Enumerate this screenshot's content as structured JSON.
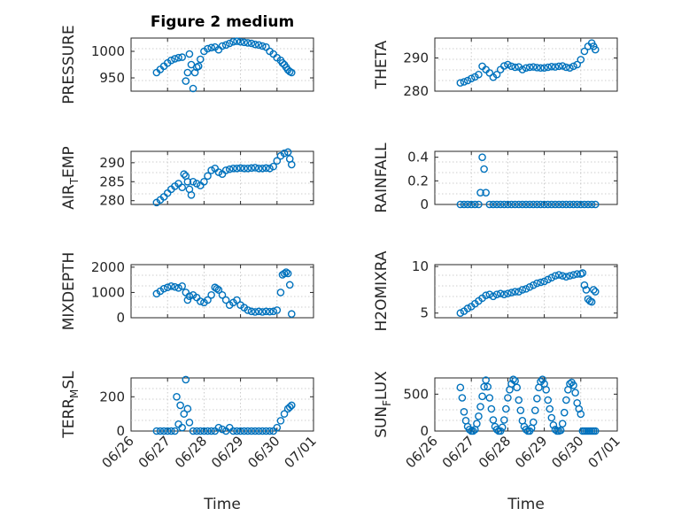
{
  "figure": {
    "title": "Figure 2 medium"
  },
  "x_axis": {
    "range": [
      "06/26",
      "07/01"
    ],
    "ticks": [
      "06/26",
      "06/27",
      "06/28",
      "06/29",
      "06/30",
      "07/01"
    ],
    "label": "Time"
  },
  "colors": {
    "marker": "#0072BD",
    "axes": "#262626",
    "grid": "#bfbfbf"
  },
  "chart_data": [
    {
      "type": "scatter",
      "ylabel": "PRESSURE",
      "ylim": [
        925,
        1025
      ],
      "yticks": [
        950,
        1000
      ],
      "grid": true,
      "x": [
        0.7,
        0.8,
        0.9,
        1.0,
        1.1,
        1.2,
        1.3,
        1.4,
        1.5,
        1.55,
        1.6,
        1.65,
        1.7,
        1.75,
        1.8,
        1.85,
        1.9,
        2.0,
        2.1,
        2.2,
        2.3,
        2.4,
        2.5,
        2.6,
        2.7,
        2.8,
        2.9,
        3.0,
        3.1,
        3.2,
        3.3,
        3.4,
        3.5,
        3.6,
        3.7,
        3.8,
        3.9,
        4.0,
        4.1,
        4.15,
        4.2,
        4.25,
        4.3,
        4.35,
        4.4
      ],
      "y": [
        960,
        966,
        972,
        978,
        983,
        986,
        988,
        989,
        944,
        960,
        995,
        975,
        930,
        960,
        970,
        972,
        985,
        1000,
        1005,
        1007,
        1008,
        1003,
        1010,
        1012,
        1015,
        1018,
        1019,
        1018,
        1017,
        1016,
        1015,
        1013,
        1012,
        1010,
        1008,
        1000,
        995,
        988,
        983,
        978,
        975,
        970,
        965,
        962,
        960
      ]
    },
    {
      "type": "scatter",
      "ylabel": "THETA",
      "ylim": [
        280,
        296
      ],
      "yticks": [
        280,
        290
      ],
      "grid": true,
      "x": [
        0.7,
        0.8,
        0.9,
        1.0,
        1.1,
        1.2,
        1.3,
        1.4,
        1.5,
        1.6,
        1.7,
        1.8,
        1.9,
        2.0,
        2.1,
        2.2,
        2.3,
        2.4,
        2.5,
        2.6,
        2.7,
        2.8,
        2.9,
        3.0,
        3.1,
        3.2,
        3.3,
        3.4,
        3.5,
        3.6,
        3.7,
        3.8,
        3.9,
        4.0,
        4.1,
        4.2,
        4.3,
        4.35,
        4.4
      ],
      "y": [
        282.5,
        282.8,
        283.2,
        283.8,
        284.3,
        285.0,
        287.5,
        286.5,
        285.5,
        284.2,
        285.0,
        286.5,
        287.6,
        288.0,
        287.5,
        287.2,
        287.3,
        286.5,
        287.0,
        287.2,
        287.3,
        287.1,
        287.0,
        287.0,
        287.2,
        287.4,
        287.3,
        287.5,
        287.6,
        287.2,
        287.0,
        287.5,
        288.0,
        289.5,
        292.0,
        293.5,
        294.5,
        293.5,
        292.5
      ]
    },
    {
      "type": "scatter",
      "ylabel": "AIR_TEMP",
      "ylim": [
        279,
        293
      ],
      "yticks": [
        280,
        285,
        290
      ],
      "grid": true,
      "x": [
        0.7,
        0.8,
        0.9,
        1.0,
        1.1,
        1.2,
        1.3,
        1.4,
        1.45,
        1.5,
        1.55,
        1.6,
        1.65,
        1.7,
        1.8,
        1.9,
        2.0,
        2.1,
        2.2,
        2.3,
        2.4,
        2.5,
        2.6,
        2.7,
        2.8,
        2.9,
        3.0,
        3.1,
        3.2,
        3.3,
        3.4,
        3.5,
        3.6,
        3.7,
        3.8,
        3.9,
        4.0,
        4.1,
        4.2,
        4.3,
        4.35,
        4.4
      ],
      "y": [
        279.5,
        280.2,
        281.0,
        282.0,
        283.0,
        283.8,
        284.5,
        283.5,
        287.0,
        286.5,
        285.0,
        283.0,
        281.5,
        285.0,
        284.5,
        284.0,
        285.0,
        286.5,
        288.0,
        288.5,
        287.5,
        287.0,
        288.0,
        288.3,
        288.5,
        288.5,
        288.6,
        288.5,
        288.5,
        288.6,
        288.7,
        288.5,
        288.5,
        288.6,
        288.5,
        289.0,
        290.5,
        291.8,
        292.5,
        292.8,
        291.0,
        289.5
      ]
    },
    {
      "type": "scatter",
      "ylabel": "RAINFALL",
      "ylim": [
        0,
        0.45
      ],
      "yticks": [
        0,
        0.2,
        0.4
      ],
      "grid": true,
      "x": [
        0.7,
        0.8,
        0.9,
        1.0,
        1.1,
        1.2,
        1.25,
        1.3,
        1.35,
        1.4,
        1.5,
        1.6,
        1.7,
        1.8,
        1.9,
        2.0,
        2.1,
        2.2,
        2.3,
        2.4,
        2.5,
        2.6,
        2.7,
        2.8,
        2.9,
        3.0,
        3.1,
        3.2,
        3.3,
        3.4,
        3.5,
        3.6,
        3.7,
        3.8,
        3.9,
        4.0,
        4.1,
        4.2,
        4.3,
        4.4
      ],
      "y": [
        0,
        0,
        0,
        0,
        0,
        0,
        0.1,
        0.4,
        0.3,
        0.1,
        0,
        0,
        0,
        0,
        0,
        0,
        0,
        0,
        0,
        0,
        0,
        0,
        0,
        0,
        0,
        0,
        0,
        0,
        0,
        0,
        0,
        0,
        0,
        0,
        0,
        0,
        0,
        0,
        0,
        0
      ]
    },
    {
      "type": "scatter",
      "ylabel": "MIXDEPTH",
      "ylim": [
        0,
        2100
      ],
      "yticks": [
        0,
        1000,
        2000
      ],
      "grid": true,
      "x": [
        0.7,
        0.8,
        0.9,
        1.0,
        1.1,
        1.2,
        1.3,
        1.4,
        1.5,
        1.55,
        1.6,
        1.7,
        1.8,
        1.9,
        2.0,
        2.1,
        2.2,
        2.3,
        2.35,
        2.4,
        2.5,
        2.6,
        2.7,
        2.8,
        2.9,
        3.0,
        3.1,
        3.2,
        3.3,
        3.4,
        3.5,
        3.6,
        3.7,
        3.8,
        3.9,
        4.0,
        4.1,
        4.15,
        4.2,
        4.25,
        4.3,
        4.35,
        4.4
      ],
      "y": [
        950,
        1050,
        1150,
        1200,
        1250,
        1220,
        1180,
        1250,
        1000,
        700,
        850,
        900,
        800,
        650,
        600,
        700,
        900,
        1200,
        1150,
        1100,
        900,
        700,
        500,
        600,
        700,
        500,
        400,
        300,
        250,
        230,
        250,
        230,
        250,
        240,
        250,
        300,
        1000,
        1700,
        1750,
        1800,
        1750,
        1300,
        150
      ]
    },
    {
      "type": "scatter",
      "ylabel": "H2OMIXRA",
      "ylim": [
        4.5,
        10.2
      ],
      "yticks": [
        5,
        10
      ],
      "grid": true,
      "x": [
        0.7,
        0.8,
        0.9,
        1.0,
        1.1,
        1.2,
        1.3,
        1.4,
        1.5,
        1.6,
        1.7,
        1.8,
        1.9,
        2.0,
        2.1,
        2.2,
        2.3,
        2.4,
        2.5,
        2.6,
        2.7,
        2.8,
        2.9,
        3.0,
        3.1,
        3.2,
        3.3,
        3.4,
        3.5,
        3.6,
        3.7,
        3.8,
        3.9,
        4.0,
        4.05,
        4.1,
        4.15,
        4.2,
        4.25,
        4.3,
        4.35,
        4.4
      ],
      "y": [
        5.0,
        5.2,
        5.5,
        5.7,
        6.0,
        6.3,
        6.6,
        6.9,
        7.0,
        6.8,
        7.0,
        7.1,
        7.0,
        7.1,
        7.2,
        7.3,
        7.3,
        7.5,
        7.6,
        7.8,
        8.0,
        8.2,
        8.3,
        8.4,
        8.6,
        8.8,
        9.0,
        9.1,
        9.0,
        8.9,
        9.0,
        9.1,
        9.2,
        9.2,
        9.3,
        8.0,
        7.5,
        6.5,
        6.3,
        6.2,
        7.5,
        7.3
      ]
    },
    {
      "type": "scatter",
      "ylabel": "TERR_MSL",
      "ylim": [
        0,
        310
      ],
      "yticks": [
        0,
        200
      ],
      "grid": true,
      "x": [
        0.7,
        0.8,
        0.9,
        1.0,
        1.1,
        1.2,
        1.25,
        1.3,
        1.35,
        1.4,
        1.45,
        1.5,
        1.55,
        1.6,
        1.7,
        1.8,
        1.9,
        2.0,
        2.1,
        2.2,
        2.3,
        2.4,
        2.5,
        2.6,
        2.7,
        2.8,
        2.9,
        3.0,
        3.1,
        3.2,
        3.3,
        3.4,
        3.5,
        3.6,
        3.7,
        3.8,
        3.9,
        4.0,
        4.1,
        4.2,
        4.3,
        4.35,
        4.4
      ],
      "y": [
        0,
        0,
        0,
        0,
        0,
        0,
        200,
        40,
        150,
        20,
        100,
        300,
        130,
        50,
        0,
        0,
        0,
        0,
        0,
        0,
        0,
        20,
        10,
        0,
        20,
        0,
        0,
        0,
        0,
        0,
        0,
        0,
        0,
        0,
        0,
        0,
        0,
        20,
        60,
        100,
        130,
        140,
        150
      ]
    },
    {
      "type": "scatter",
      "ylabel": "SUN_FLUX",
      "ylim": [
        0,
        720
      ],
      "yticks": [
        0,
        500
      ],
      "grid": true,
      "x": [
        0.7,
        0.75,
        0.8,
        0.85,
        0.9,
        0.95,
        1.0,
        1.05,
        1.1,
        1.15,
        1.2,
        1.25,
        1.3,
        1.35,
        1.4,
        1.45,
        1.5,
        1.55,
        1.6,
        1.65,
        1.7,
        1.75,
        1.8,
        1.85,
        1.9,
        1.95,
        2.0,
        2.05,
        2.1,
        2.15,
        2.2,
        2.25,
        2.3,
        2.35,
        2.4,
        2.45,
        2.5,
        2.55,
        2.6,
        2.65,
        2.7,
        2.75,
        2.8,
        2.85,
        2.9,
        2.95,
        3.0,
        3.05,
        3.1,
        3.15,
        3.2,
        3.25,
        3.3,
        3.35,
        3.4,
        3.45,
        3.5,
        3.55,
        3.6,
        3.65,
        3.7,
        3.75,
        3.8,
        3.85,
        3.9,
        3.95,
        4.0,
        4.05,
        4.1,
        4.15,
        4.2,
        4.25,
        4.3,
        4.35,
        4.4
      ],
      "y": [
        590,
        450,
        260,
        140,
        60,
        20,
        0,
        0,
        20,
        100,
        200,
        330,
        470,
        600,
        690,
        600,
        450,
        300,
        150,
        60,
        20,
        0,
        0,
        50,
        150,
        300,
        450,
        560,
        640,
        700,
        680,
        590,
        420,
        280,
        140,
        60,
        20,
        0,
        0,
        40,
        120,
        280,
        440,
        590,
        670,
        700,
        640,
        560,
        420,
        300,
        180,
        80,
        20,
        0,
        0,
        10,
        100,
        250,
        420,
        560,
        640,
        660,
        620,
        520,
        380,
        300,
        230,
        0,
        0,
        0,
        0,
        0,
        0,
        0,
        0
      ]
    }
  ]
}
